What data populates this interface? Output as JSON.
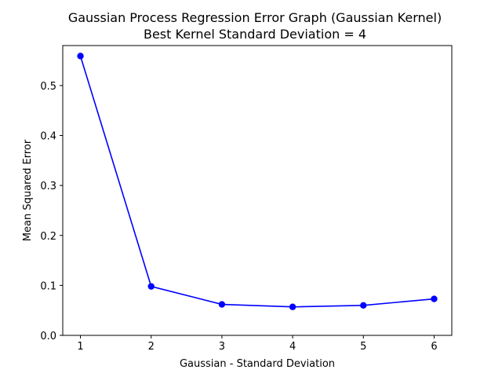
{
  "chart_data": {
    "type": "line",
    "title": "Gaussian Process Regression Error Graph (Gaussian Kernel)",
    "subtitle": "Best Kernel Standard Deviation = 4",
    "xlabel": "Gaussian - Standard Deviation",
    "ylabel": "Mean Squared Error",
    "x": [
      1,
      2,
      3,
      4,
      5,
      6
    ],
    "series": [
      {
        "values": [
          0.559,
          0.098,
          0.062,
          0.057,
          0.06,
          0.073
        ],
        "color": "#0000ff",
        "marker": "circle"
      }
    ],
    "xlim": [
      0.75,
      6.25
    ],
    "ylim": [
      0,
      0.58
    ],
    "xticks": [
      1,
      2,
      3,
      4,
      5,
      6
    ],
    "xtick_labels": [
      "1",
      "2",
      "3",
      "4",
      "5",
      "6"
    ],
    "yticks": [
      0,
      0.1,
      0.2,
      0.3,
      0.4,
      0.5
    ],
    "ytick_labels": [
      "0.0",
      "0.1",
      "0.2",
      "0.3",
      "0.4",
      "0.5"
    ],
    "grid": false,
    "legend": "none"
  }
}
